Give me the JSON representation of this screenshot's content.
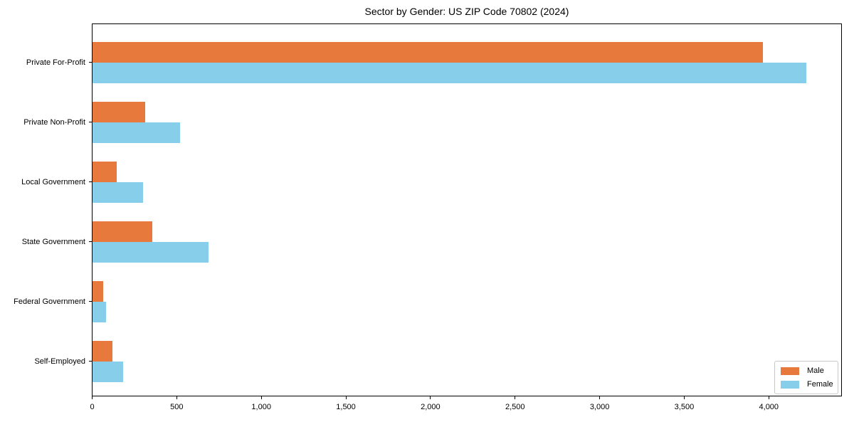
{
  "title": "Sector by Gender: US ZIP Code 70802 (2024)",
  "colors": {
    "male": "#E8793C",
    "female": "#87CEEB",
    "spine": "#000000",
    "legend_border": "#c9c9c9",
    "background": "#ffffff"
  },
  "legend": {
    "male_label": "Male",
    "female_label": "Female"
  },
  "chart_data": {
    "type": "bar",
    "orientation": "horizontal",
    "title": "Sector by Gender: US ZIP Code 70802 (2024)",
    "categories": [
      "Private For-Profit",
      "Private Non-Profit",
      "Local Government",
      "State Government",
      "Federal Government",
      "Self-Employed"
    ],
    "series": [
      {
        "name": "Male",
        "color": "#E8793C",
        "values": [
          3965,
          310,
          145,
          355,
          65,
          120
        ]
      },
      {
        "name": "Female",
        "color": "#87CEEB",
        "values": [
          4225,
          520,
          300,
          685,
          80,
          180
        ]
      }
    ],
    "xlabel": "",
    "ylabel": "",
    "xlim": [
      0,
      4430
    ],
    "xticks": [
      0,
      500,
      1000,
      1500,
      2000,
      2500,
      3000,
      3500,
      4000
    ],
    "xtick_labels": [
      "0",
      "500",
      "1,000",
      "1,500",
      "2,000",
      "2,500",
      "3,000",
      "3,500",
      "4,000"
    ],
    "grid": false,
    "legend_position": "lower right"
  }
}
